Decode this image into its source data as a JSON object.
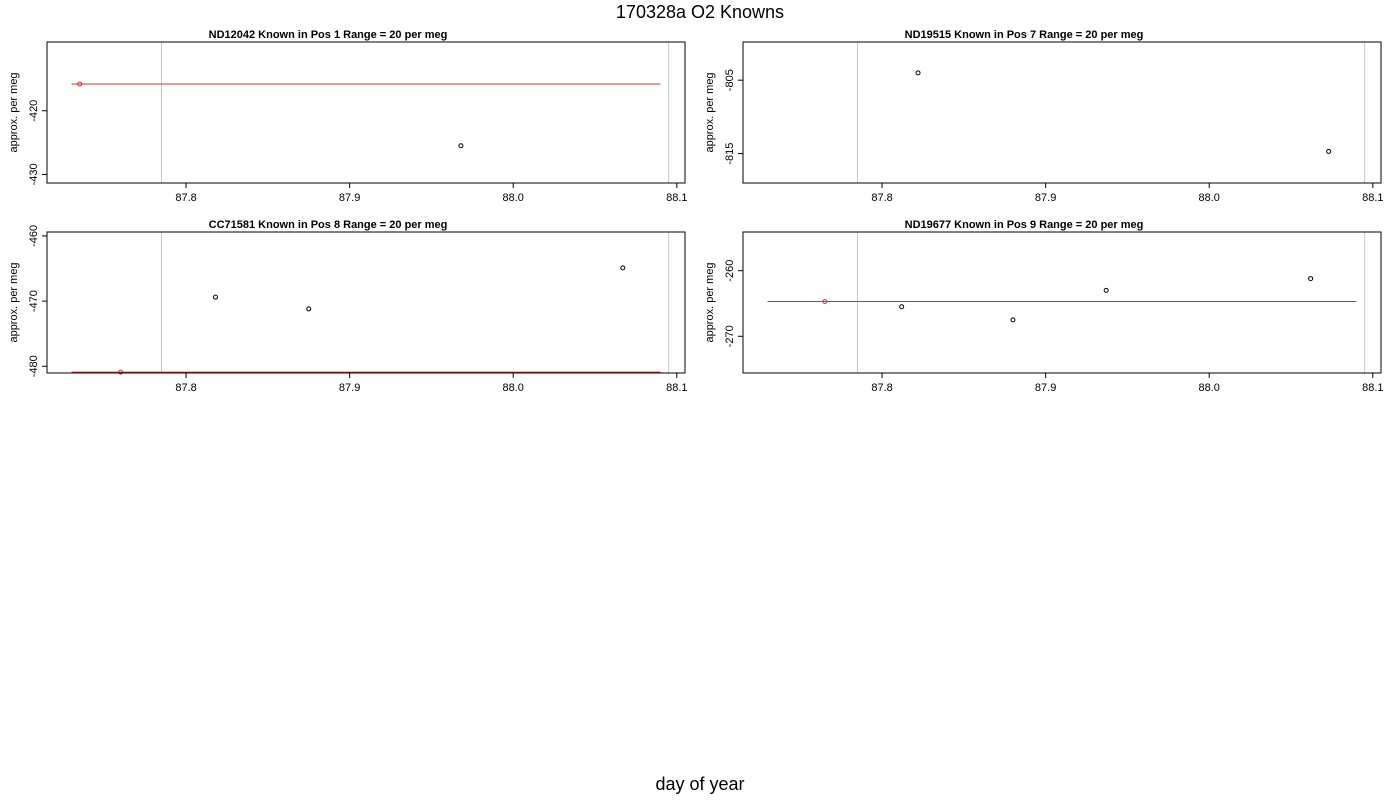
{
  "figure": {
    "title": "170328a   O2 Knowns",
    "xlabel": "day of year"
  },
  "colors": {
    "points": "#000000",
    "fit_line": "#cc3333",
    "guide_line": "#c8c8c8",
    "axis": "#000000"
  },
  "chart_data": [
    {
      "type": "scatter",
      "title": "ND12042    Known in Pos 1          Range = 20 per meg",
      "ylabel": "approx. per meg",
      "xlim": [
        87.715,
        88.105
      ],
      "ylim": [
        -431.35,
        -409.2
      ],
      "xticks": [
        87.8,
        87.9,
        88.0,
        88.1
      ],
      "xticklabels": [
        "87.8",
        "87.9",
        "88.0",
        "88.1"
      ],
      "yticks": [
        -420,
        -430
      ],
      "yticklabels": [
        "-420",
        "-430"
      ],
      "vlines": [
        87.785,
        88.095
      ],
      "fit_line": {
        "x": [
          87.73,
          88.09
        ],
        "y": [
          -415.8,
          -415.8
        ]
      },
      "points": [
        {
          "x": 87.735,
          "y": -415.8,
          "color": "red"
        },
        {
          "x": 87.968,
          "y": -425.5,
          "color": "black"
        }
      ]
    },
    {
      "type": "scatter",
      "title": "ND19515    Known in Pos 7          Range = 20 per meg",
      "ylabel": "approx. per meg",
      "xlim": [
        87.715,
        88.105
      ],
      "ylim": [
        -819.0,
        -799.8
      ],
      "xticks": [
        87.8,
        87.9,
        88.0,
        88.1
      ],
      "xticklabels": [
        "87.8",
        "87.9",
        "88.0",
        "88.1"
      ],
      "yticks": [
        -805,
        -815
      ],
      "yticklabels": [
        "-805",
        "-815"
      ],
      "vlines": [
        87.785,
        88.095
      ],
      "points": [
        {
          "x": 87.822,
          "y": -804.0,
          "color": "black"
        },
        {
          "x": 88.073,
          "y": -814.7,
          "color": "black"
        }
      ]
    },
    {
      "type": "scatter",
      "title": "CC71581    Known in Pos 8          Range = 20 per meg",
      "ylabel": "approx. per meg",
      "xlim": [
        87.715,
        88.105
      ],
      "ylim": [
        -481.03,
        -459.4
      ],
      "xticks": [
        87.8,
        87.9,
        88.0,
        88.1
      ],
      "xticklabels": [
        "87.8",
        "87.9",
        "88.0",
        "88.1"
      ],
      "yticks": [
        -460,
        -470,
        -480
      ],
      "yticklabels": [
        "-460",
        "-470",
        "-480"
      ],
      "vlines": [
        87.785,
        88.095
      ],
      "fit_line": {
        "x": [
          87.73,
          88.09
        ],
        "y": [
          -480.9,
          -480.9
        ]
      },
      "points": [
        {
          "x": 87.76,
          "y": -480.9,
          "color": "red"
        },
        {
          "x": 87.818,
          "y": -469.4,
          "color": "black"
        },
        {
          "x": 87.875,
          "y": -471.2,
          "color": "black"
        },
        {
          "x": 88.067,
          "y": -464.9,
          "color": "black"
        }
      ]
    },
    {
      "type": "scatter",
      "title": "ND19677    Known in Pos 9          Range = 20 per meg",
      "ylabel": "approx. per meg",
      "xlim": [
        87.715,
        88.105
      ],
      "ylim": [
        -275.6,
        -254.1
      ],
      "xticks": [
        87.8,
        87.9,
        88.0,
        88.1
      ],
      "xticklabels": [
        "87.8",
        "87.9",
        "88.0",
        "88.1"
      ],
      "yticks": [
        -260,
        -270
      ],
      "yticklabels": [
        "-260",
        "-270"
      ],
      "vlines": [
        87.785,
        88.095
      ],
      "fit_line": {
        "x": [
          87.73,
          88.09
        ],
        "y": [
          -264.7,
          -264.7
        ]
      },
      "points": [
        {
          "x": 87.765,
          "y": -264.7,
          "color": "red"
        },
        {
          "x": 87.812,
          "y": -265.5,
          "color": "black"
        },
        {
          "x": 87.88,
          "y": -267.5,
          "color": "black"
        },
        {
          "x": 87.937,
          "y": -263.0,
          "color": "black"
        },
        {
          "x": 88.062,
          "y": -261.2,
          "color": "black"
        }
      ]
    }
  ]
}
